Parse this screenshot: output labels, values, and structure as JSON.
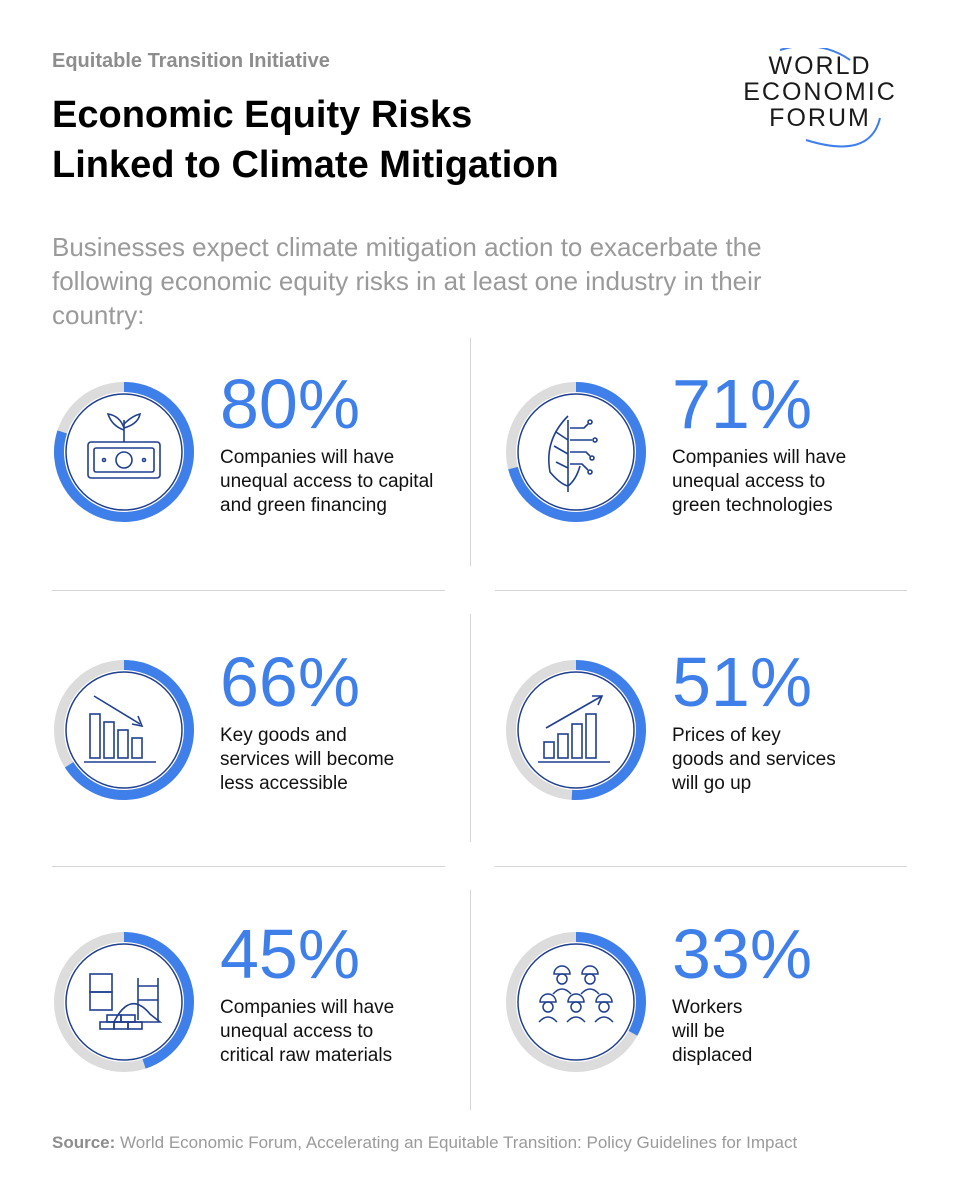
{
  "header": {
    "kicker": "Equitable Transition Initiative",
    "title_lines": [
      "Economic Equity Risks",
      "Linked to Climate Mitigation"
    ],
    "subtitle": "Businesses expect climate mitigation action to exacerbate the following economic equity risks in at least one industry in their country:"
  },
  "logo": {
    "lines": [
      "WORLD",
      "ECONOMIC",
      "FORUM"
    ]
  },
  "colors": {
    "accent": "#3f7fea",
    "track": "#dcdcdc",
    "icon": "#1f3f8f"
  },
  "chart_data": {
    "type": "pie",
    "unit": "%",
    "items": [
      {
        "value": 80,
        "label": "80%",
        "desc_lines": [
          "Companies will have",
          "unequal access to capital",
          "and green financing"
        ],
        "icon": "money-plant-icon"
      },
      {
        "value": 71,
        "label": "71%",
        "desc_lines": [
          "Companies will have",
          "unequal access to",
          "green technologies"
        ],
        "icon": "tech-leaf-icon"
      },
      {
        "value": 66,
        "label": "66%",
        "desc_lines": [
          "Key goods and",
          "services will become",
          "less accessible"
        ],
        "icon": "chart-down-icon"
      },
      {
        "value": 51,
        "label": "51%",
        "desc_lines": [
          "Prices of key",
          "goods and services",
          "will go up"
        ],
        "icon": "chart-up-icon"
      },
      {
        "value": 45,
        "label": "45%",
        "desc_lines": [
          "Companies will have",
          "unequal access to",
          "critical raw materials"
        ],
        "icon": "raw-materials-icon"
      },
      {
        "value": 33,
        "label": "33%",
        "desc_lines": [
          "Workers",
          "will be",
          "displaced"
        ],
        "icon": "workers-icon"
      }
    ]
  },
  "source": {
    "label": "Source:",
    "text": " World Economic Forum, Accelerating an Equitable Transition: Policy Guidelines for Impact"
  }
}
